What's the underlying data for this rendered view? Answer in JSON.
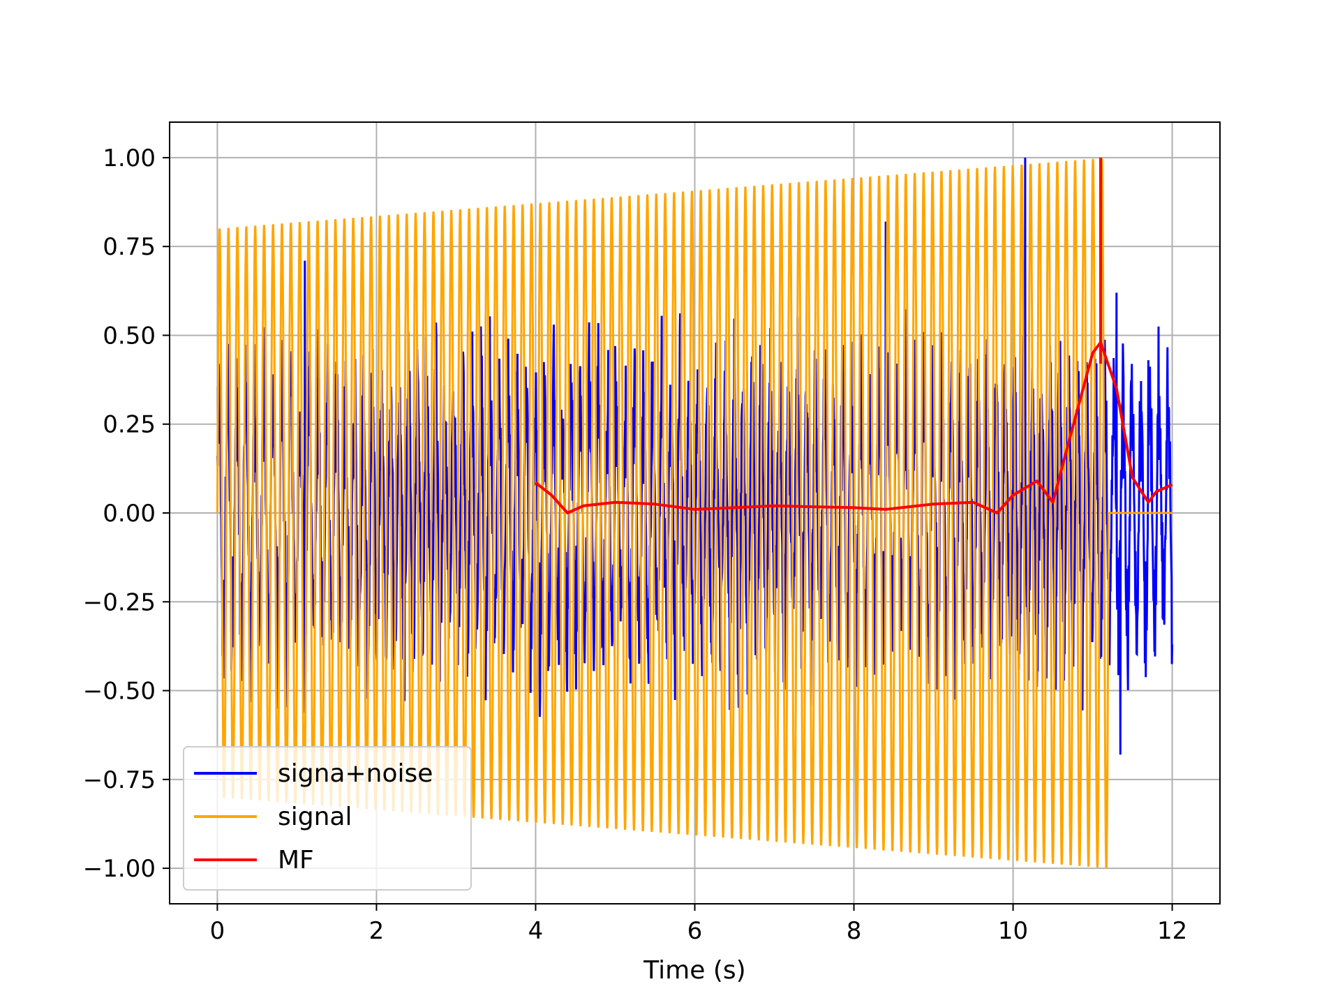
{
  "chart_data": {
    "type": "line",
    "title": "",
    "xlabel": "Time (s)",
    "ylabel": "",
    "xlim": [
      -0.6,
      12.6
    ],
    "ylim": [
      -1.1,
      1.1
    ],
    "xticks": [
      0,
      2,
      4,
      6,
      8,
      10,
      12
    ],
    "xtick_labels": [
      "0",
      "2",
      "4",
      "6",
      "8",
      "10",
      "12"
    ],
    "yticks": [
      1.0,
      0.75,
      0.5,
      0.25,
      0.0,
      -0.25,
      -0.5,
      -0.75,
      -1.0
    ],
    "ytick_labels": [
      "1.00",
      "0.75",
      "0.50",
      "0.25",
      "0.00",
      "−0.25",
      "−0.50",
      "−0.75",
      "−1.00"
    ],
    "grid": true,
    "legend_position": "lower-left",
    "series": [
      {
        "name": "signa+noise",
        "color": "#0000ff",
        "description_points": {
          "t_start": 0.0,
          "t_end": 12.0,
          "key_peaks": [
            [
              1.1,
              0.71
            ],
            [
              5.0,
              0.47
            ],
            [
              8.4,
              0.82
            ],
            [
              10.15,
              1.0
            ],
            [
              11.3,
              0.62
            ],
            [
              11.35,
              -0.68
            ],
            [
              11.7,
              0.43
            ],
            [
              12.0,
              -0.37
            ]
          ]
        }
      },
      {
        "name": "signal",
        "color": "#ffa500",
        "description_points": {
          "t_start": 0.0,
          "t_end": 11.2,
          "amp_start": 0.8,
          "amp_end": 1.0,
          "cycles": 100,
          "zero_after": [
            11.2,
            12.0
          ]
        }
      },
      {
        "name": "MF",
        "color": "#ff0000",
        "x": [
          4.0,
          4.2,
          4.4,
          4.6,
          5.0,
          5.5,
          6.0,
          7.0,
          8.0,
          8.4,
          9.0,
          9.5,
          9.8,
          10.0,
          10.3,
          10.5,
          10.7,
          11.0,
          11.1,
          11.3,
          11.5,
          11.7,
          11.8,
          12.0
        ],
        "values": [
          0.085,
          0.05,
          0.0,
          0.02,
          0.03,
          0.025,
          0.01,
          0.02,
          0.015,
          0.01,
          0.025,
          0.03,
          0.0,
          0.05,
          0.09,
          0.03,
          0.2,
          0.45,
          0.48,
          0.35,
          0.1,
          0.03,
          0.06,
          0.08
        ],
        "spike": {
          "x": 11.1,
          "values": [
            0.42,
            1.0
          ]
        }
      }
    ]
  }
}
